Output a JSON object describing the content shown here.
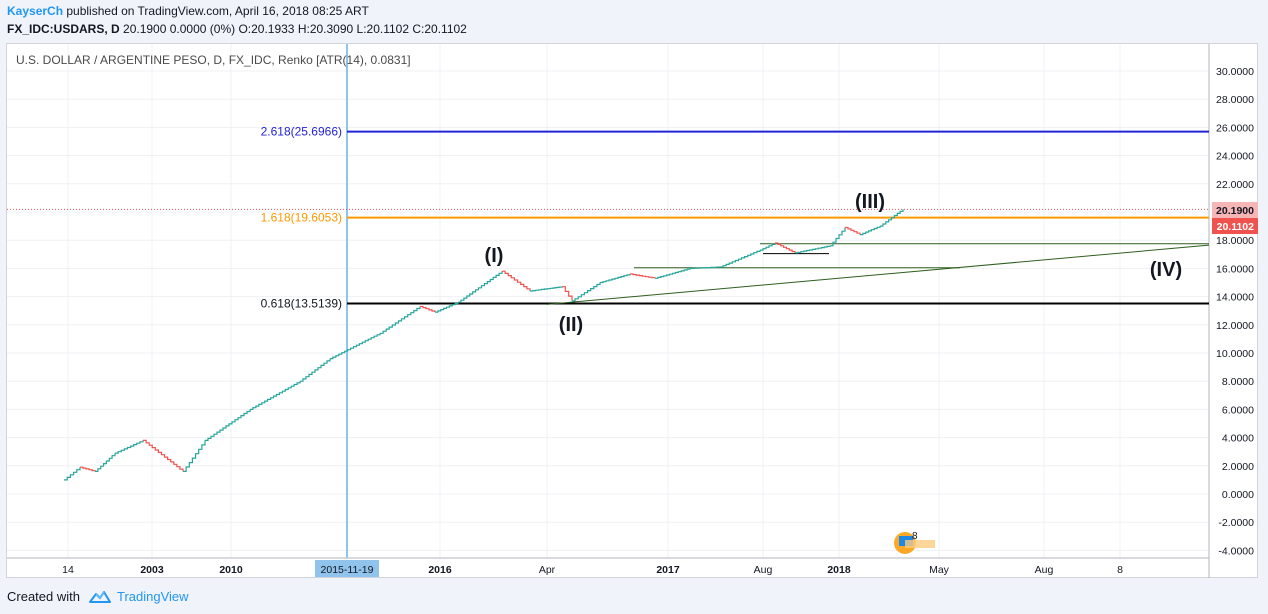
{
  "header": {
    "user": "KayserCh",
    "published": " published on TradingView.com, April 16, 2018 08:25 ART",
    "symbol": "FX_IDC:USDARS, D",
    "quote": " 20.1900 0.0000 (0%) O:20.1933 H:20.3090 L:20.1102 C:20.1102"
  },
  "footer": {
    "created_with": "Created with",
    "brand": "TradingView"
  },
  "chart_data": {
    "type": "line",
    "title": "U.S. DOLLAR / ARGENTINE PESO, D, FX_IDC, Renko [ATR(14), 0.0831]",
    "xlabel": "",
    "ylabel": "",
    "ylim": [
      -4.6,
      31.4
    ],
    "y_ticks": [
      "30.0000",
      "28.0000",
      "26.0000",
      "24.0000",
      "22.0000",
      "20.0000",
      "18.0000",
      "16.0000",
      "14.0000",
      "12.0000",
      "10.0000",
      "8.0000",
      "6.0000",
      "4.0000",
      "2.0000",
      "0.0000",
      "-2.0000",
      "-4.0000"
    ],
    "y_tick_values": [
      30,
      28,
      26,
      24,
      22,
      20,
      18,
      16,
      14,
      12,
      10,
      8,
      6,
      4,
      2,
      0,
      -2,
      -4
    ],
    "x_ticks": [
      "14",
      "2003",
      "2010",
      "2015-11-19",
      "2016",
      "Apr",
      "2017",
      "Aug",
      "2018",
      "May",
      "Aug",
      "8"
    ],
    "highlighted_x": "2015-11-19",
    "series": [
      {
        "values": [
          1.0,
          1.9,
          1.6,
          2.9,
          3.8,
          1.6,
          3.8,
          6.0,
          8.0,
          9.6,
          11.4,
          13.3,
          12.9,
          13.6,
          15.8,
          14.4,
          14.7,
          13.7,
          15.0,
          15.6,
          15.3,
          16.0,
          16.1,
          17.3,
          17.8,
          17.1,
          17.6,
          18.9,
          18.4,
          19.0,
          20.2
        ]
      }
    ],
    "price_labels": [
      {
        "text": "20.1900",
        "value": 20.19,
        "color": "#f7b6b6",
        "text_color": "#131722"
      },
      {
        "text": "20.1102",
        "value": 20.1102,
        "color": "#ef5350",
        "text_color": "#ffffff"
      }
    ],
    "levels": [
      {
        "label": "2.618(25.6966)",
        "value": 25.6966,
        "color": "#2323d8"
      },
      {
        "label": "1.618(19.6053)",
        "value": 19.6053,
        "color": "#ff9800"
      },
      {
        "label": "0.618(13.5139)",
        "value": 13.5139,
        "color": "#000000"
      }
    ],
    "annotations": [
      "(I)",
      "(II)",
      "(III)",
      "(IV)"
    ],
    "badge_count": "8",
    "colors": {
      "up": "#26a69a",
      "down": "#ef5350",
      "trend": "#2e5e1e",
      "cursor": "#90c4ec"
    }
  }
}
